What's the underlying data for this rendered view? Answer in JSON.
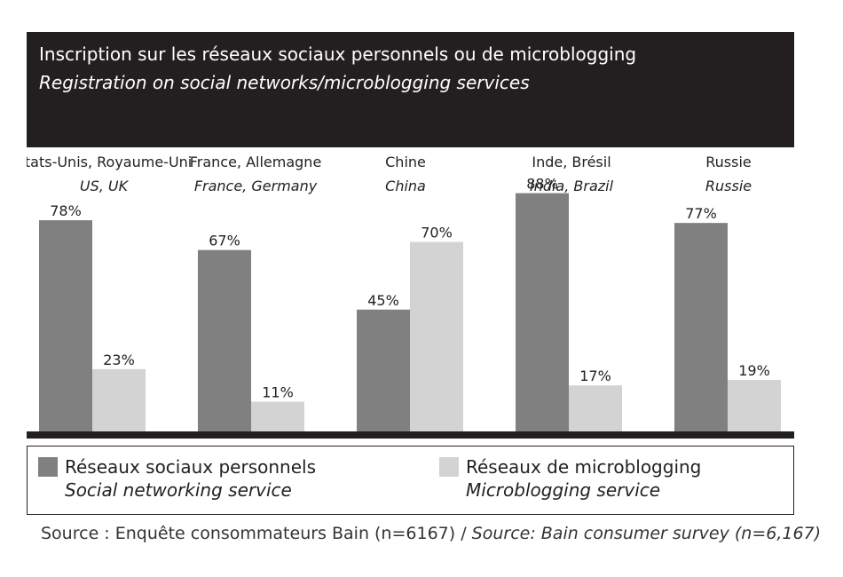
{
  "header": {
    "title_fr": "Inscription sur les réseaux sociaux personnels ou de microblogging",
    "title_en": "Registration on social networks/microblogging services"
  },
  "chart_data": {
    "type": "bar",
    "categories": [
      {
        "fr": "Etats-Unis, Royaume-Uni",
        "en": "US, UK"
      },
      {
        "fr": "France, Allemagne",
        "en": "France, Germany"
      },
      {
        "fr": "Chine",
        "en": "China"
      },
      {
        "fr": "Inde, Brésil",
        "en": "India, Brazil"
      },
      {
        "fr": "Russie",
        "en": "Russie"
      }
    ],
    "series": [
      {
        "name": "Réseaux sociaux personnels",
        "values": [
          78,
          67,
          45,
          88,
          77
        ],
        "labels": [
          "78%",
          "67%",
          "45%",
          "88%",
          "77%"
        ],
        "color": "#808080"
      },
      {
        "name": "Réseaux de microblogging",
        "values": [
          23,
          11,
          70,
          17,
          19
        ],
        "labels": [
          "23%",
          "11%",
          "70%",
          "17%",
          "19%"
        ],
        "color": "#d3d3d3"
      }
    ],
    "ylim": [
      0,
      100
    ],
    "grid": false
  },
  "legend": {
    "items": [
      {
        "fr": "Réseaux sociaux personnels",
        "en": "Social networking service",
        "color": "#808080"
      },
      {
        "fr": "Réseaux de microblogging",
        "en": "Microblogging service",
        "color": "#d3d3d3"
      }
    ]
  },
  "source": {
    "fr": "Source : Enquête consommateurs Bain (n=6167) / ",
    "en": "Source: Bain consumer survey (n=6,167)"
  }
}
